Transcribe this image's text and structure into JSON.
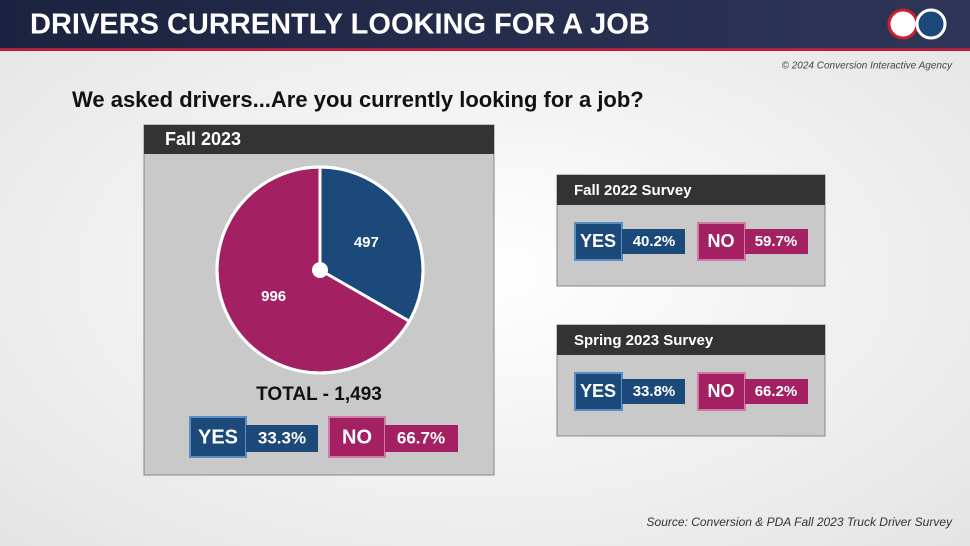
{
  "header": {
    "title": "DRIVERS CURRENTLY LOOKING FOR A JOB",
    "copyright": "© 2024 Conversion Interactive Agency"
  },
  "question": "We asked drivers...Are you currently looking for a job?",
  "chart_data": {
    "type": "pie",
    "title": "Fall 2023",
    "categories": [
      "YES",
      "NO"
    ],
    "values": [
      497,
      996
    ],
    "colors": [
      "#1b4a7a",
      "#a32163"
    ],
    "total_label": "TOTAL - 1,493",
    "percent_labels": [
      "33.3%",
      "66.7%"
    ]
  },
  "surveys": [
    {
      "title": "Fall 2022 Survey",
      "yes": "YES",
      "yes_pct": "40.2%",
      "no": "NO",
      "no_pct": "59.7%"
    },
    {
      "title": "Spring 2023 Survey",
      "yes": "YES",
      "yes_pct": "33.8%",
      "no": "NO",
      "no_pct": "66.2%"
    }
  ],
  "footer": {
    "source": "Source: Conversion & PDA Fall 2023 Truck Driver Survey"
  }
}
